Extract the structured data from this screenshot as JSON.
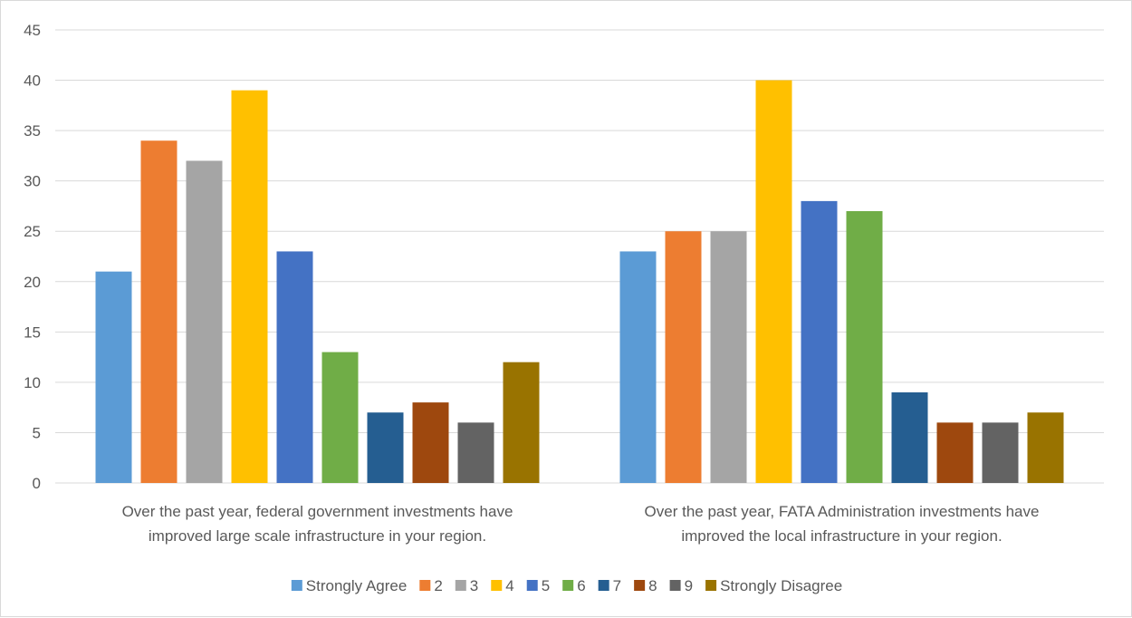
{
  "chart_data": {
    "type": "bar",
    "title": "",
    "xlabel": "",
    "ylabel": "",
    "ylim": [
      0,
      45
    ],
    "yticks": [
      0,
      5,
      10,
      15,
      20,
      25,
      30,
      35,
      40,
      45
    ],
    "grid": true,
    "legend_position": "bottom",
    "categories": [
      [
        "Over the past year, federal government investments have",
        "improved large scale infrastructure in your region."
      ],
      [
        "Over the past year, FATA Administration investments have",
        "improved the local infrastructure in your region."
      ]
    ],
    "series": [
      {
        "name": "Strongly Agree",
        "color": "#5B9BD5",
        "values": [
          21,
          23
        ]
      },
      {
        "name": "2",
        "color": "#ED7D31",
        "values": [
          34,
          25
        ]
      },
      {
        "name": "3",
        "color": "#A5A5A5",
        "values": [
          32,
          25
        ]
      },
      {
        "name": "4",
        "color": "#FFC000",
        "values": [
          39,
          40
        ]
      },
      {
        "name": "5",
        "color": "#4472C4",
        "values": [
          23,
          28
        ]
      },
      {
        "name": "6",
        "color": "#70AD47",
        "values": [
          13,
          27
        ]
      },
      {
        "name": "7",
        "color": "#255E91",
        "values": [
          7,
          9
        ]
      },
      {
        "name": "8",
        "color": "#9E480E",
        "values": [
          8,
          6
        ]
      },
      {
        "name": "9",
        "color": "#636363",
        "values": [
          6,
          6
        ]
      },
      {
        "name": "Strongly Disagree",
        "color": "#997300",
        "values": [
          12,
          7
        ]
      }
    ]
  }
}
